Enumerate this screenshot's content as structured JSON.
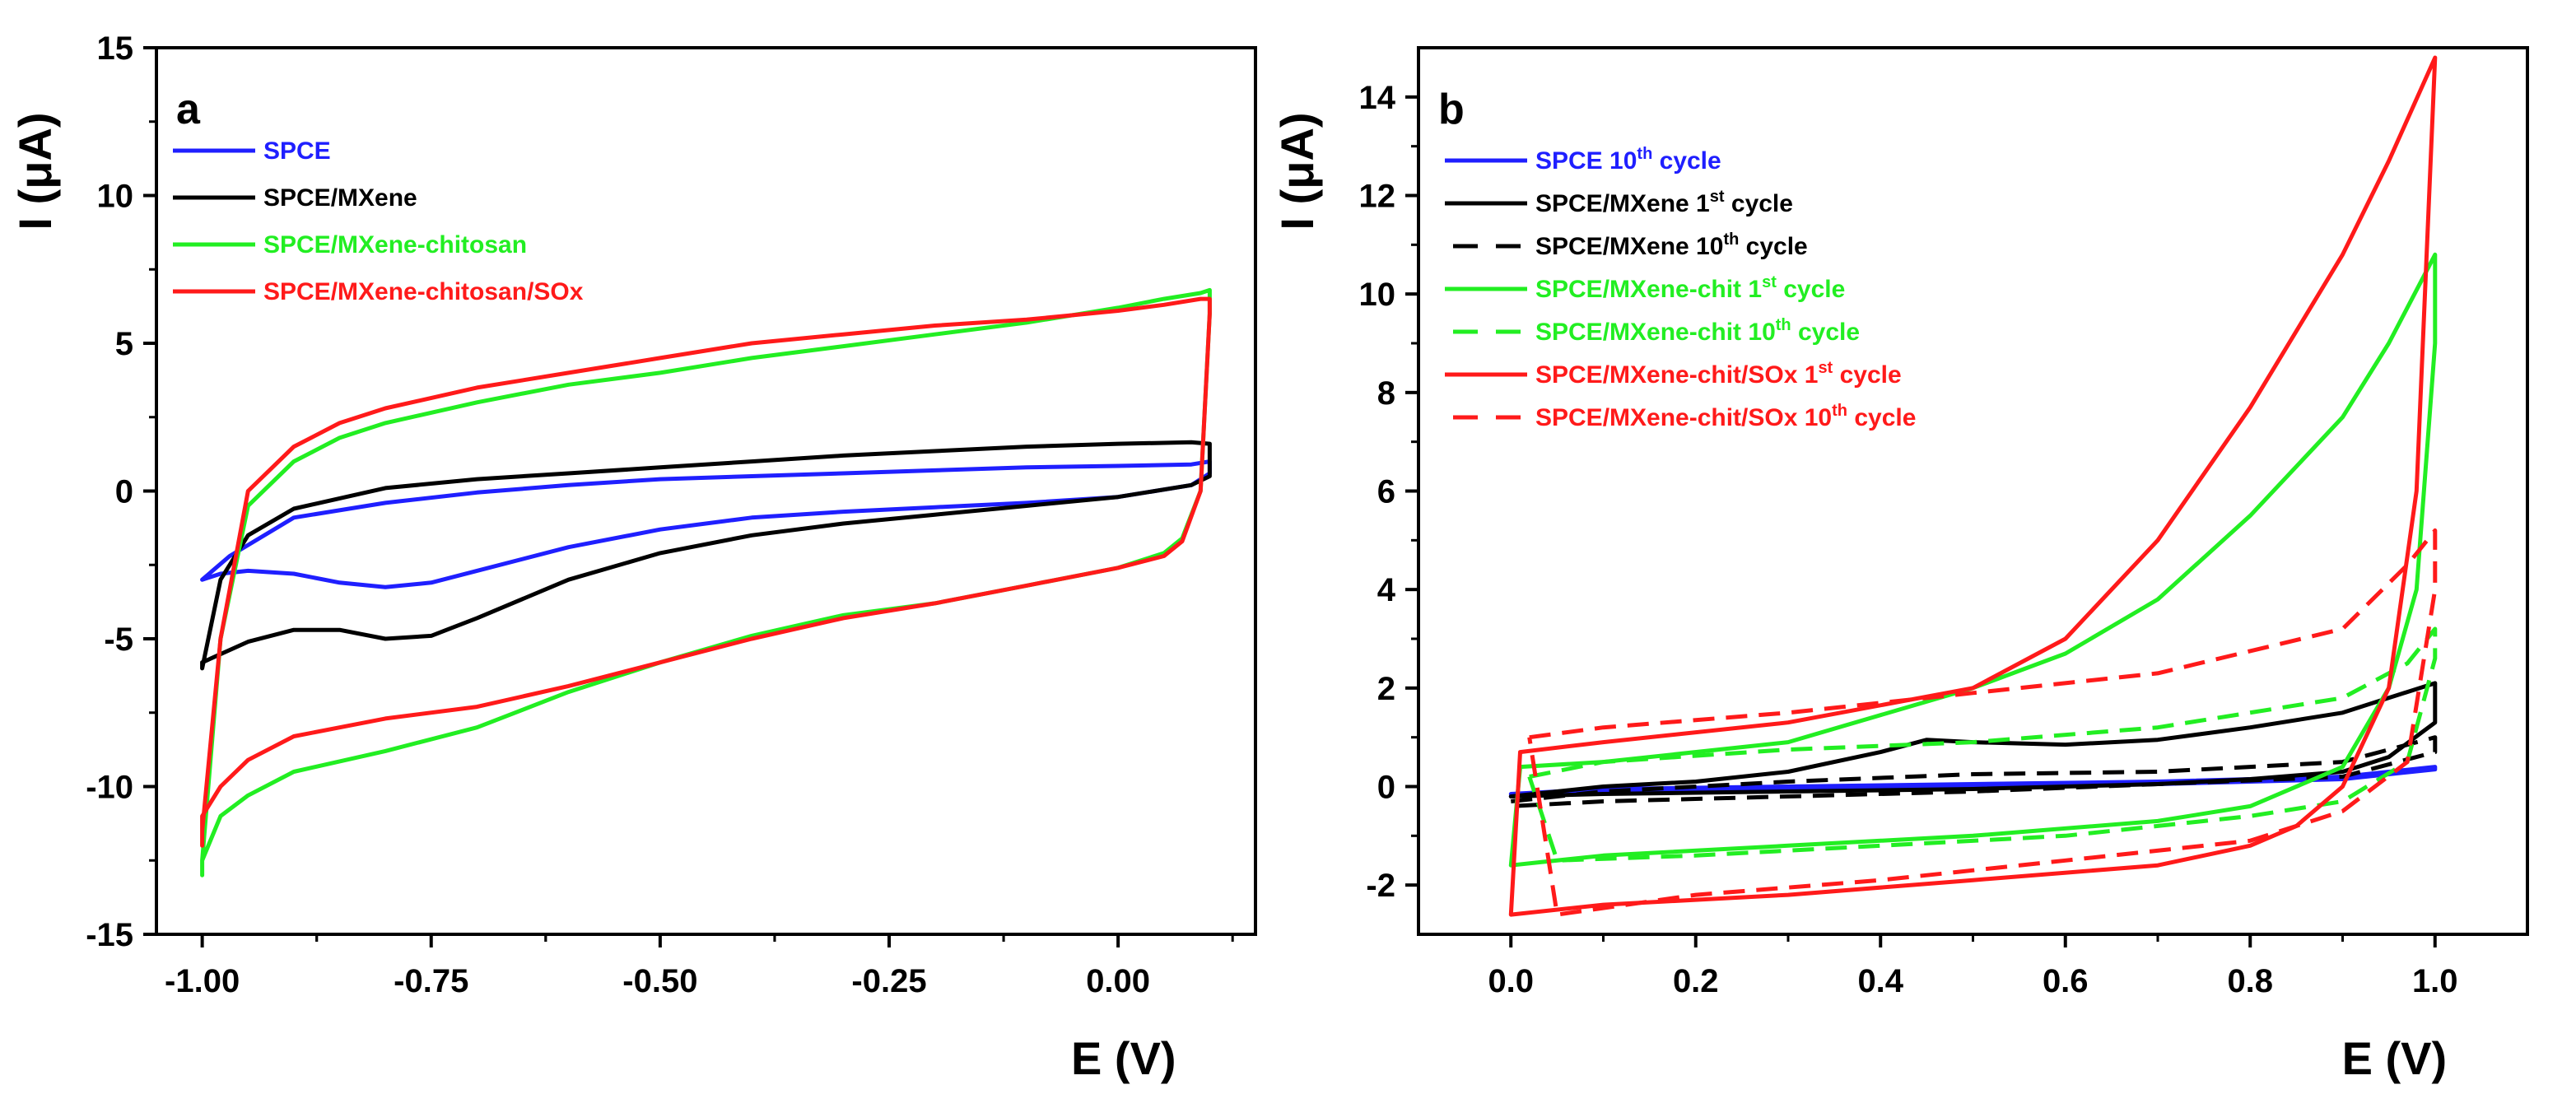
{
  "chart_data": [
    {
      "type": "line",
      "panel_label": "a",
      "xlabel": "E (V)",
      "ylabel": "I (μA)",
      "xlim": [
        -1.05,
        0.15
      ],
      "ylim": [
        -15,
        15
      ],
      "xticks": [
        -1.0,
        -0.75,
        -0.5,
        -0.25,
        0.0
      ],
      "xtick_labels": [
        "-1.00",
        "-0.75",
        "-0.50",
        "-0.25",
        "0.00"
      ],
      "yticks": [
        -15,
        -10,
        -5,
        0,
        5,
        10,
        15
      ],
      "ytick_labels": [
        "-15",
        "-10",
        "-5",
        "0",
        "5",
        "10",
        "15"
      ],
      "legend_position": "top-left",
      "series": [
        {
          "name": "SPCE",
          "color": "#1f1fff",
          "dashed": false,
          "x": [
            -1.0,
            -0.97,
            -0.9,
            -0.8,
            -0.7,
            -0.6,
            -0.5,
            -0.4,
            -0.3,
            -0.2,
            -0.1,
            0.0,
            0.08,
            0.1,
            0.1,
            0.08,
            0.0,
            -0.1,
            -0.2,
            -0.3,
            -0.4,
            -0.5,
            -0.6,
            -0.7,
            -0.75,
            -0.8,
            -0.85,
            -0.9,
            -0.95,
            -0.98,
            -1.0,
            -1.0
          ],
          "y": [
            -3.0,
            -2.2,
            -0.9,
            -0.4,
            -0.05,
            0.2,
            0.4,
            0.5,
            0.6,
            0.7,
            0.8,
            0.85,
            0.9,
            1.0,
            0.6,
            0.2,
            -0.2,
            -0.4,
            -0.55,
            -0.7,
            -0.9,
            -1.3,
            -1.9,
            -2.7,
            -3.1,
            -3.25,
            -3.1,
            -2.8,
            -2.7,
            -2.8,
            -3.0,
            -3.0
          ]
        },
        {
          "name": "SPCE/MXene",
          "color": "#000000",
          "dashed": false,
          "x": [
            -1.0,
            -0.98,
            -0.95,
            -0.9,
            -0.8,
            -0.7,
            -0.6,
            -0.5,
            -0.4,
            -0.3,
            -0.2,
            -0.1,
            0.0,
            0.08,
            0.1,
            0.1,
            0.08,
            0.0,
            -0.1,
            -0.2,
            -0.3,
            -0.4,
            -0.5,
            -0.6,
            -0.7,
            -0.75,
            -0.8,
            -0.85,
            -0.9,
            -0.95,
            -1.0,
            -1.0
          ],
          "y": [
            -6.0,
            -3.0,
            -1.5,
            -0.6,
            0.1,
            0.4,
            0.6,
            0.8,
            1.0,
            1.2,
            1.35,
            1.5,
            1.6,
            1.65,
            1.6,
            0.5,
            0.2,
            -0.2,
            -0.5,
            -0.8,
            -1.1,
            -1.5,
            -2.1,
            -3.0,
            -4.3,
            -4.9,
            -5.0,
            -4.7,
            -4.7,
            -5.1,
            -5.8,
            -6.0
          ]
        },
        {
          "name": "SPCE/MXene-chitosan",
          "color": "#22ee22",
          "dashed": false,
          "x": [
            -1.0,
            -0.98,
            -0.95,
            -0.9,
            -0.85,
            -0.8,
            -0.7,
            -0.6,
            -0.5,
            -0.4,
            -0.3,
            -0.2,
            -0.1,
            0.0,
            0.05,
            0.09,
            0.1,
            0.1,
            0.09,
            0.07,
            0.05,
            0.0,
            -0.1,
            -0.2,
            -0.3,
            -0.4,
            -0.5,
            -0.6,
            -0.7,
            -0.8,
            -0.9,
            -0.95,
            -0.98,
            -1.0,
            -1.0
          ],
          "y": [
            -12.5,
            -5.0,
            -0.5,
            1.0,
            1.8,
            2.3,
            3.0,
            3.6,
            4.0,
            4.5,
            4.9,
            5.3,
            5.7,
            6.2,
            6.5,
            6.7,
            6.8,
            6.0,
            0.0,
            -1.6,
            -2.1,
            -2.6,
            -3.2,
            -3.8,
            -4.2,
            -4.9,
            -5.8,
            -6.8,
            -8.0,
            -8.8,
            -9.5,
            -10.3,
            -11.0,
            -12.5,
            -13.0
          ]
        },
        {
          "name": "SPCE/MXene-chitosan/SOx",
          "color": "#ff1a1a",
          "dashed": false,
          "x": [
            -1.0,
            -0.98,
            -0.95,
            -0.9,
            -0.85,
            -0.8,
            -0.7,
            -0.6,
            -0.5,
            -0.4,
            -0.3,
            -0.2,
            -0.1,
            0.0,
            0.05,
            0.09,
            0.1,
            0.1,
            0.09,
            0.07,
            0.05,
            0.0,
            -0.1,
            -0.2,
            -0.3,
            -0.4,
            -0.5,
            -0.6,
            -0.7,
            -0.8,
            -0.9,
            -0.95,
            -0.98,
            -1.0,
            -1.0
          ],
          "y": [
            -11.5,
            -5.0,
            0.0,
            1.5,
            2.3,
            2.8,
            3.5,
            4.0,
            4.5,
            5.0,
            5.3,
            5.6,
            5.8,
            6.1,
            6.3,
            6.5,
            6.5,
            6.0,
            0.0,
            -1.7,
            -2.2,
            -2.6,
            -3.2,
            -3.8,
            -4.3,
            -5.0,
            -5.8,
            -6.6,
            -7.3,
            -7.7,
            -8.3,
            -9.1,
            -10.0,
            -11.0,
            -12.0
          ]
        }
      ]
    },
    {
      "type": "line",
      "panel_label": "b",
      "xlabel": "E (V)",
      "ylabel": "I (μA)",
      "xlim": [
        -0.1,
        1.1
      ],
      "ylim": [
        -3,
        15
      ],
      "xticks": [
        0.0,
        0.2,
        0.4,
        0.6,
        0.8,
        1.0
      ],
      "xtick_labels": [
        "0.0",
        "0.2",
        "0.4",
        "0.6",
        "0.8",
        "1.0"
      ],
      "yticks": [
        -2,
        0,
        2,
        4,
        6,
        8,
        10,
        12,
        14
      ],
      "ytick_labels": [
        "-2",
        "0",
        "2",
        "4",
        "6",
        "8",
        "10",
        "12",
        "14"
      ],
      "legend_position": "top-left",
      "series": [
        {
          "name": "SPCE 10th cycle",
          "label_main": "SPCE 10",
          "label_sup": "th",
          "label_tail": " cycle",
          "color": "#1f1fff",
          "dashed": false,
          "x": [
            0.0,
            0.1,
            0.3,
            0.5,
            0.7,
            0.9,
            1.0,
            1.0,
            0.9,
            0.7,
            0.5,
            0.3,
            0.1,
            0.0
          ],
          "y": [
            -0.15,
            -0.05,
            0.0,
            0.05,
            0.1,
            0.2,
            0.4,
            0.35,
            0.15,
            0.05,
            0.0,
            -0.05,
            -0.1,
            -0.2
          ]
        },
        {
          "name": "SPCE/MXene 1st cycle",
          "label_main": "SPCE/MXene 1",
          "label_sup": "st",
          "label_tail": " cycle",
          "color": "#000000",
          "dashed": false,
          "x": [
            0.0,
            0.1,
            0.2,
            0.3,
            0.4,
            0.45,
            0.5,
            0.6,
            0.7,
            0.8,
            0.9,
            0.95,
            1.0,
            1.0,
            0.95,
            0.9,
            0.8,
            0.7,
            0.5,
            0.3,
            0.1,
            0.0
          ],
          "y": [
            -0.2,
            0.0,
            0.1,
            0.3,
            0.7,
            0.95,
            0.9,
            0.85,
            0.95,
            1.2,
            1.5,
            1.8,
            2.1,
            1.3,
            0.6,
            0.3,
            0.15,
            0.05,
            -0.05,
            -0.1,
            -0.15,
            -0.2
          ]
        },
        {
          "name": "SPCE/MXene 10th cycle",
          "label_main": "SPCE/MXene 10",
          "label_sup": "th",
          "label_tail": " cycle",
          "color": "#000000",
          "dashed": true,
          "x": [
            0.0,
            0.1,
            0.3,
            0.5,
            0.7,
            0.9,
            1.0,
            1.0,
            0.9,
            0.7,
            0.5,
            0.3,
            0.1,
            0.0
          ],
          "y": [
            -0.3,
            -0.1,
            0.1,
            0.25,
            0.3,
            0.5,
            1.0,
            0.7,
            0.2,
            0.05,
            -0.1,
            -0.2,
            -0.3,
            -0.4
          ]
        },
        {
          "name": "SPCE/MXene-chit 1st cycle",
          "label_main": "SPCE/MXene-chit 1",
          "label_sup": "st",
          "label_tail": " cycle",
          "color": "#22ee22",
          "dashed": false,
          "x": [
            0.0,
            0.01,
            0.1,
            0.3,
            0.5,
            0.6,
            0.7,
            0.8,
            0.9,
            0.95,
            1.0,
            1.0,
            0.98,
            0.95,
            0.9,
            0.8,
            0.7,
            0.5,
            0.3,
            0.1,
            0.0
          ],
          "y": [
            -1.6,
            0.4,
            0.5,
            0.9,
            2.0,
            2.7,
            3.8,
            5.5,
            7.5,
            9.0,
            10.8,
            9.0,
            4.0,
            2.0,
            0.4,
            -0.4,
            -0.7,
            -1.0,
            -1.2,
            -1.4,
            -1.6
          ]
        },
        {
          "name": "SPCE/MXene-chit 10th cycle",
          "label_main": "SPCE/MXene-chit 10",
          "label_sup": "th",
          "label_tail": " cycle",
          "color": "#22ee22",
          "dashed": true,
          "x": [
            0.02,
            0.1,
            0.3,
            0.5,
            0.7,
            0.9,
            0.97,
            1.0,
            1.0,
            0.97,
            0.9,
            0.8,
            0.6,
            0.4,
            0.2,
            0.05,
            0.02
          ],
          "y": [
            0.2,
            0.5,
            0.75,
            0.9,
            1.2,
            1.8,
            2.5,
            3.2,
            2.6,
            0.5,
            -0.3,
            -0.6,
            -1.0,
            -1.2,
            -1.4,
            -1.5,
            0.2
          ]
        },
        {
          "name": "SPCE/MXene-chit/SOx 1st cycle",
          "label_main": "SPCE/MXene-chit/SOx 1",
          "label_sup": "st",
          "label_tail": " cycle",
          "color": "#ff1a1a",
          "dashed": false,
          "x": [
            0.0,
            0.01,
            0.1,
            0.3,
            0.5,
            0.6,
            0.7,
            0.8,
            0.9,
            0.95,
            1.0,
            0.98,
            0.95,
            0.9,
            0.85,
            0.8,
            0.7,
            0.5,
            0.3,
            0.1,
            0.0
          ],
          "y": [
            -2.6,
            0.7,
            0.9,
            1.3,
            2.0,
            3.0,
            5.0,
            7.7,
            10.8,
            12.7,
            14.8,
            6.0,
            2.0,
            0.0,
            -0.8,
            -1.2,
            -1.6,
            -1.9,
            -2.2,
            -2.4,
            -2.6
          ]
        },
        {
          "name": "SPCE/MXene-chit/SOx 10th cycle",
          "label_main": "SPCE/MXene-chit/SOx 10",
          "label_sup": "th",
          "label_tail": " cycle",
          "color": "#ff1a1a",
          "dashed": true,
          "x": [
            0.02,
            0.1,
            0.3,
            0.5,
            0.7,
            0.9,
            0.97,
            1.0,
            1.0,
            0.97,
            0.9,
            0.8,
            0.6,
            0.4,
            0.2,
            0.05,
            0.02
          ],
          "y": [
            1.0,
            1.2,
            1.5,
            1.9,
            2.3,
            3.2,
            4.5,
            5.2,
            4.0,
            0.5,
            -0.5,
            -1.1,
            -1.5,
            -1.9,
            -2.2,
            -2.6,
            1.0
          ]
        }
      ]
    }
  ]
}
